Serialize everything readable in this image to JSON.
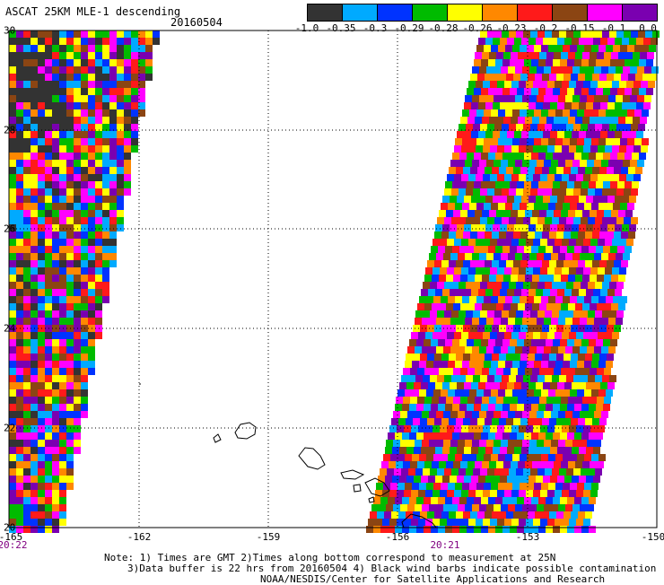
{
  "header": {
    "title": "ASCAT 25KM MLE-1 descending",
    "date": "20160504"
  },
  "colorbar": {
    "colors": [
      "#333333",
      "#00aaff",
      "#0033ff",
      "#00bb00",
      "#ffff00",
      "#ff8800",
      "#ff1a1a",
      "#8b4513",
      "#ff00ff",
      "#7a00b0"
    ],
    "tick_labels": [
      "-1.0",
      "-0.35",
      "-0.3",
      "-0.29",
      "-0.28",
      "-0.26",
      "-0.23",
      "-0.2",
      "-0.15",
      "-0.1",
      "0.0"
    ]
  },
  "map": {
    "lon_labels": [
      "-165",
      "-162",
      "-159",
      "-156",
      "-153",
      "-150"
    ],
    "lat_labels": [
      "30",
      "28",
      "26",
      "24",
      "22",
      "20"
    ],
    "time_labels": [
      "20:22",
      "20:21"
    ],
    "grid": "dotted"
  },
  "notes": {
    "line1": "Note: 1) Times are GMT 2)Times along bottom correspond to measurement at 25N",
    "line2": "3)Data buffer is 22 hrs from 20160504 4) Black wind barbs indicate possible contamination",
    "line3": "NOAA/NESDIS/Center for Satellite Applications and Research"
  }
}
